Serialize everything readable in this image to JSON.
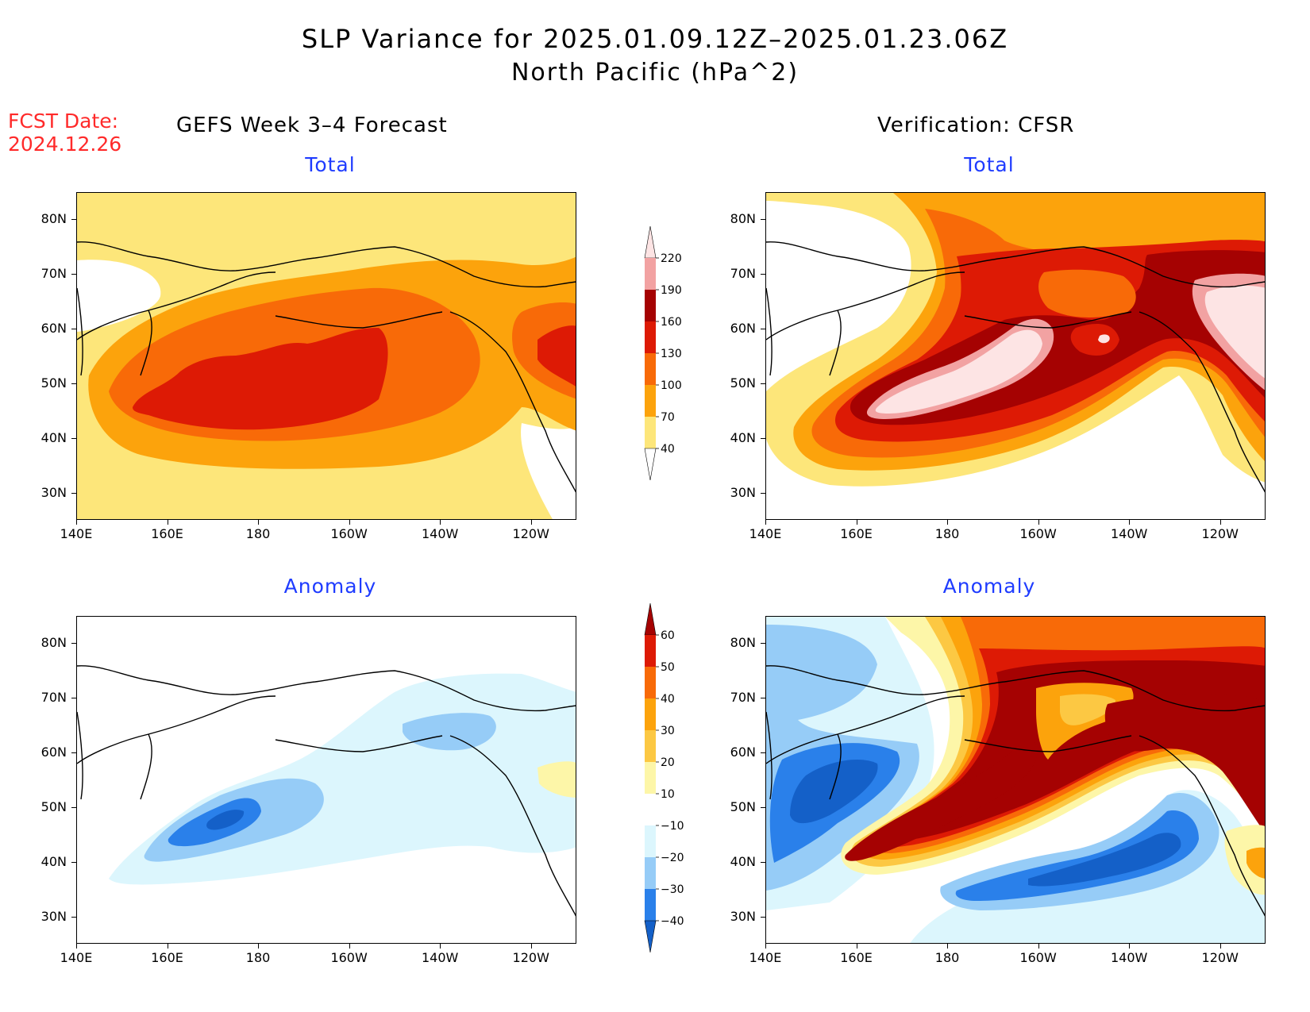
{
  "title": {
    "line1": "SLP Variance for 2025.01.09.12Z–2025.01.23.06Z",
    "line2": "North Pacific (hPa^2)"
  },
  "fcst": {
    "label": "FCST Date:",
    "date": "2024.12.26"
  },
  "columns": {
    "left": "GEFS Week 3–4 Forecast",
    "right": "Verification: CFSR"
  },
  "panels": {
    "total_label": "Total",
    "anomaly_label": "Anomaly"
  },
  "axes": {
    "lon_ticks": [
      "140E",
      "160E",
      "180",
      "160W",
      "140W",
      "120W"
    ],
    "lat_ticks": [
      "80N",
      "70N",
      "60N",
      "50N",
      "40N",
      "30N"
    ],
    "lon_range": [
      140,
      250
    ],
    "lat_range": [
      25,
      85
    ]
  },
  "colorbars": {
    "total": {
      "levels": [
        "40",
        "70",
        "100",
        "130",
        "160",
        "190",
        "220"
      ],
      "colors": [
        "#ffffff",
        "#fde67a",
        "#fca30c",
        "#f86a08",
        "#dd1a05",
        "#a50202",
        "#f2a2a2",
        "#fde4e4"
      ]
    },
    "anomaly": {
      "levels": [
        "−40",
        "−30",
        "−20",
        "−10",
        "10",
        "20",
        "30",
        "40",
        "50",
        "60"
      ],
      "colors": [
        "#1460c8",
        "#2a80ea",
        "#96ccf7",
        "#dcf6fd",
        "#ffffff",
        "#fdf6a8",
        "#fcc843",
        "#fca30c",
        "#f86a08",
        "#dd1a05",
        "#a50202"
      ]
    }
  }
}
